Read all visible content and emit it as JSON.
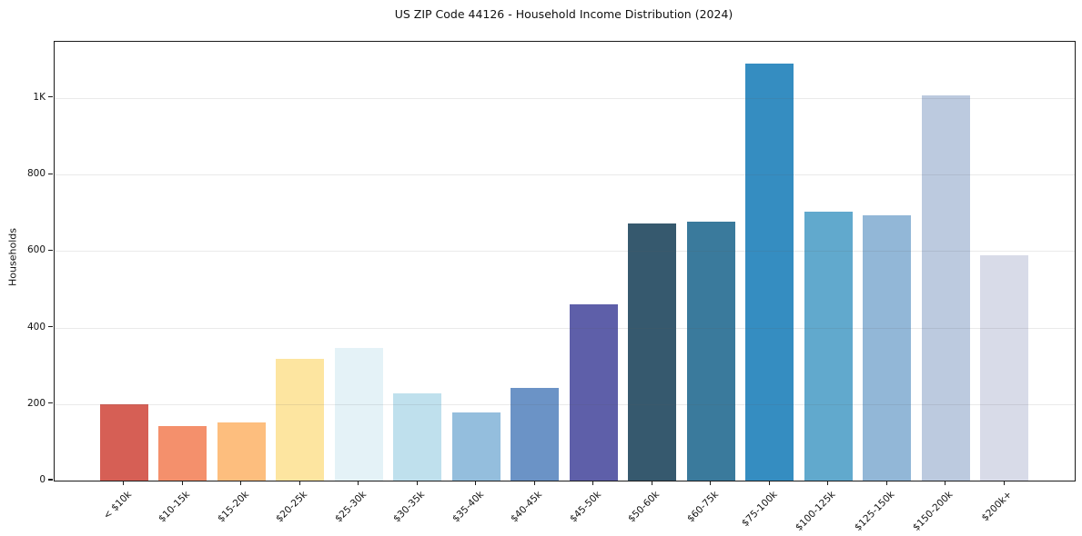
{
  "chart_data": {
    "type": "bar",
    "title": "US ZIP Code 44126 - Household Income Distribution (2024)",
    "xlabel": "",
    "ylabel": "Households",
    "categories": [
      "< $10k",
      "$10-15k",
      "$15-20k",
      "$20-25k",
      "$25-30k",
      "$30-35k",
      "$35-40k",
      "$40-45k",
      "$45-50k",
      "$50-60k",
      "$60-75k",
      "$75-100k",
      "$100-125k",
      "$125-150k",
      "$150-200k",
      "$200k+"
    ],
    "values": [
      200,
      142,
      153,
      318,
      347,
      229,
      178,
      243,
      462,
      673,
      676,
      1091,
      704,
      694,
      1008,
      588
    ],
    "bar_colors": [
      "#d65f55",
      "#f4906c",
      "#fdbe7e",
      "#fde5a0",
      "#e4f2f7",
      "#bfe0ed",
      "#94bedd",
      "#6b93c6",
      "#5e5fa9",
      "#36596e",
      "#3a7a9c",
      "#358dc1",
      "#61a9cd",
      "#92b7d7",
      "#bccadf",
      "#d8dbe8"
    ],
    "ylim": [
      0,
      1147
    ],
    "yticks": [
      {
        "value": 0,
        "label": "0"
      },
      {
        "value": 200,
        "label": "200"
      },
      {
        "value": 400,
        "label": "400"
      },
      {
        "value": 600,
        "label": "600"
      },
      {
        "value": 800,
        "label": "800"
      },
      {
        "value": 1000,
        "label": "1K"
      }
    ],
    "grid": "horizontal",
    "legend": "none",
    "background_color": "#ffffff",
    "spine_color": "#1a1a1a",
    "text_color": "#111111"
  }
}
